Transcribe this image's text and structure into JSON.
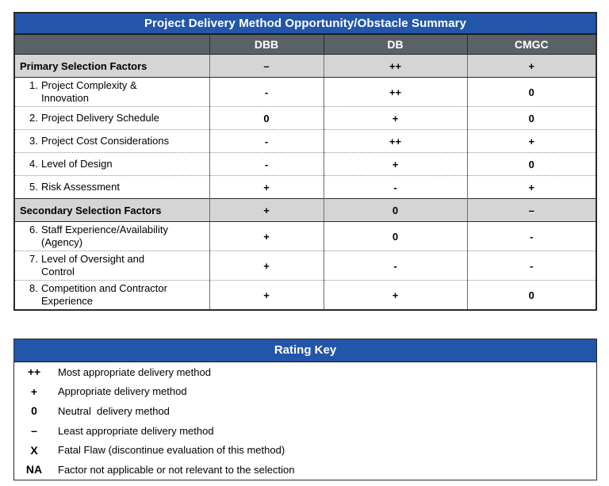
{
  "summary_table": {
    "title": "Project Delivery Method Opportunity/Obstacle Summary",
    "columns": [
      "DBB",
      "DB",
      "CMGC"
    ],
    "rows": [
      {
        "type": "section",
        "label": "Primary Selection Factors",
        "values": [
          "–",
          "++",
          "+"
        ]
      },
      {
        "type": "item",
        "num": "1.",
        "label": "Project Complexity & Innovation",
        "values": [
          "-",
          "++",
          "0"
        ]
      },
      {
        "type": "item",
        "num": "2.",
        "label": "Project Delivery Schedule",
        "values": [
          "0",
          "+",
          "0"
        ]
      },
      {
        "type": "item",
        "num": "3.",
        "label": "Project Cost Considerations",
        "values": [
          "-",
          "++",
          "+"
        ]
      },
      {
        "type": "item",
        "num": "4.",
        "label": "Level of Design",
        "values": [
          "-",
          "+",
          "0"
        ]
      },
      {
        "type": "item",
        "num": "5.",
        "label": "Risk Assessment",
        "values": [
          "+",
          "-",
          "+"
        ]
      },
      {
        "type": "section",
        "label": "Secondary Selection Factors",
        "values": [
          "+",
          "0",
          "–"
        ]
      },
      {
        "type": "item",
        "num": "6.",
        "label": "Staff Experience/Availability (Agency)",
        "values": [
          "+",
          "0",
          "-"
        ]
      },
      {
        "type": "item",
        "num": "7.",
        "label": "Level of Oversight and Control",
        "values": [
          "+",
          "-",
          "-"
        ]
      },
      {
        "type": "item",
        "num": "8.",
        "label": "Competition and Contractor Experience",
        "values": [
          "+",
          "+",
          "0"
        ]
      }
    ]
  },
  "rating_key": {
    "title": "Rating Key",
    "entries": [
      {
        "symbol": "++",
        "description": "Most appropriate delivery method"
      },
      {
        "symbol": "+",
        "description": "Appropriate delivery method"
      },
      {
        "symbol": "0",
        "description": "Neutral  delivery method"
      },
      {
        "symbol": "–",
        "description": "Least appropriate delivery method"
      },
      {
        "symbol": "X",
        "description": "Fatal Flaw (discontinue evaluation of this method)"
      },
      {
        "symbol": "NA",
        "description": "Factor not applicable or not relevant to the selection"
      }
    ]
  },
  "colors": {
    "header_blue": "#2355A8",
    "header_gray": "#5B6168",
    "section_gray": "#D5D5D5"
  }
}
